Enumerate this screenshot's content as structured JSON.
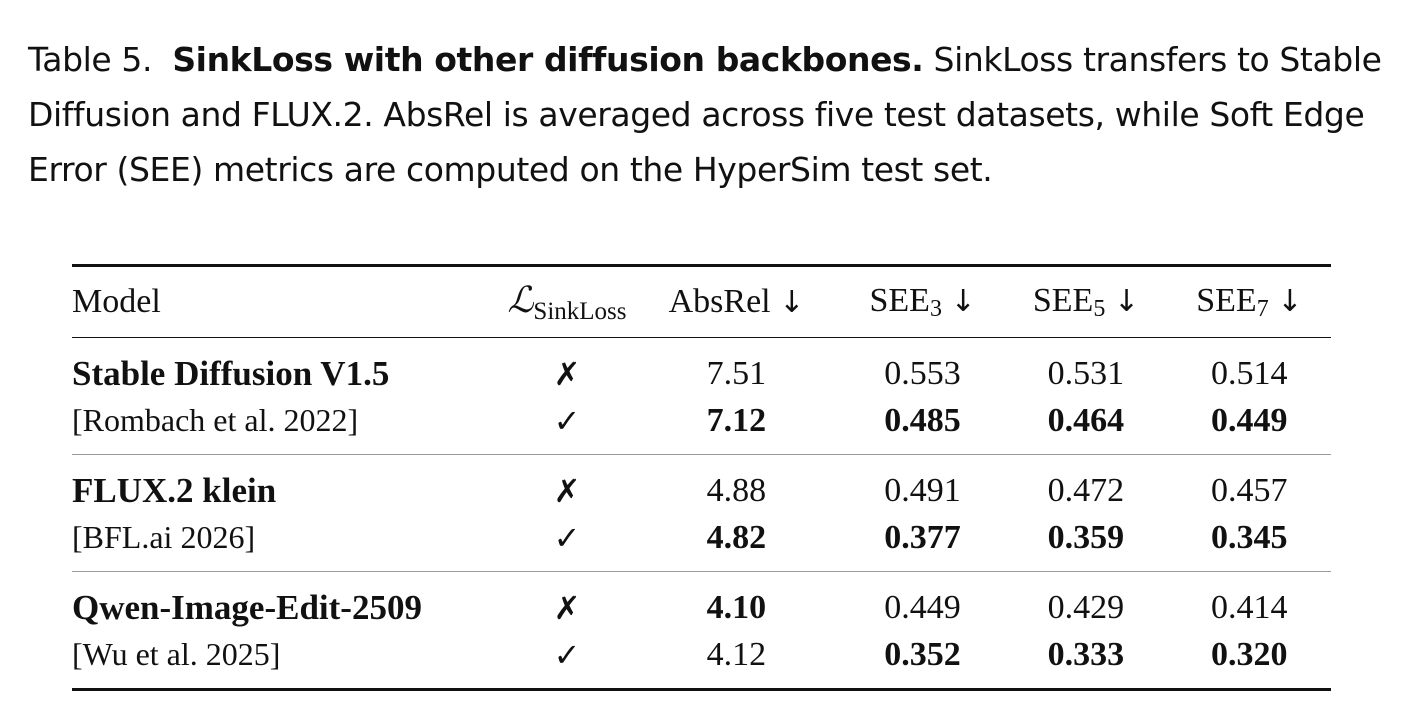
{
  "caption": {
    "label": "Table 5.",
    "title": "SinkLoss with other diffusion backbones.",
    "body": "SinkLoss transfers to Stable Diffusion and FLUX.2. AbsRel is averaged across five test datasets, while Soft Edge Error (SEE) metrics are computed on the HyperSim test set."
  },
  "table": {
    "headers": {
      "model": "Model",
      "loss_symbol": "ℒ",
      "loss_subscript": "SinkLoss",
      "absrel": "AbsRel",
      "see": "SEE",
      "see3_sub": "3",
      "see5_sub": "5",
      "see7_sub": "7",
      "arrow": "↓"
    },
    "rows": [
      {
        "name": "Stable Diffusion V1.5",
        "citation": "[Rombach et al. 2022]",
        "without": {
          "mark": "✗",
          "absrel": "7.51",
          "see3": "0.553",
          "see5": "0.531",
          "see7": "0.514"
        },
        "with": {
          "mark": "✓",
          "absrel": "7.12",
          "see3": "0.485",
          "see5": "0.464",
          "see7": "0.449"
        }
      },
      {
        "name": "FLUX.2 klein",
        "citation": "[BFL.ai 2026]",
        "without": {
          "mark": "✗",
          "absrel": "4.88",
          "see3": "0.491",
          "see5": "0.472",
          "see7": "0.457"
        },
        "with": {
          "mark": "✓",
          "absrel": "4.82",
          "see3": "0.377",
          "see5": "0.359",
          "see7": "0.345"
        }
      },
      {
        "name": "Qwen-Image-Edit-2509",
        "citation": "[Wu et al. 2025]",
        "without": {
          "mark": "✗",
          "absrel": "4.10",
          "see3": "0.449",
          "see5": "0.429",
          "see7": "0.414"
        },
        "with": {
          "mark": "✓",
          "absrel": "4.12",
          "see3": "0.352",
          "see5": "0.333",
          "see7": "0.320"
        }
      }
    ]
  }
}
